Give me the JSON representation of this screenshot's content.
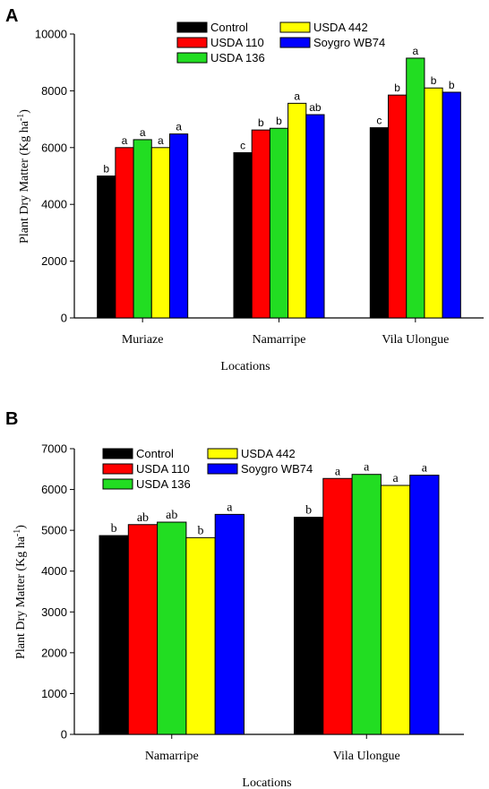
{
  "colors": {
    "Control": "#000000",
    "USDA 110": "#ff0000",
    "USDA 136": "#22dd22",
    "USDA 442": "#ffff00",
    "Soygro WB74": "#0000ff"
  },
  "chart_data": [
    {
      "panel": "A",
      "type": "bar",
      "xlabel": "Locations",
      "ylabel": "Plant Dry Matter (Kg ha-1)",
      "ylim": [
        0,
        10000
      ],
      "yticks": [
        "0",
        "2000",
        "4000",
        "6000",
        "8000",
        "10000"
      ],
      "categories": [
        "Muriaze",
        "Namarripe",
        "Vila Ulongue"
      ],
      "legend": [
        [
          "Control",
          "USDA 442"
        ],
        [
          "USDA 110",
          "Soygro WB74"
        ],
        [
          "USDA 136"
        ]
      ],
      "series": [
        {
          "name": "Control",
          "values": [
            5000,
            5820,
            6700
          ],
          "letters": [
            "b",
            "c",
            "c"
          ]
        },
        {
          "name": "USDA 110",
          "values": [
            6000,
            6620,
            7850
          ],
          "letters": [
            "a",
            "b",
            "b"
          ]
        },
        {
          "name": "USDA 136",
          "values": [
            6280,
            6680,
            9150
          ],
          "letters": [
            "a",
            "b",
            "a"
          ]
        },
        {
          "name": "USDA 442",
          "values": [
            6000,
            7560,
            8100
          ],
          "letters": [
            "a",
            "a",
            "b"
          ]
        },
        {
          "name": "Soygro WB74",
          "values": [
            6480,
            7160,
            7950
          ],
          "letters": [
            "a",
            "ab",
            "b"
          ]
        }
      ]
    },
    {
      "panel": "B",
      "type": "bar",
      "xlabel": "Locations",
      "ylabel": "Plant Dry Matter (Kg ha-1)",
      "ylim": [
        0,
        7000
      ],
      "yticks": [
        "0",
        "1000",
        "2000",
        "3000",
        "4000",
        "5000",
        "6000",
        "7000"
      ],
      "categories": [
        "Namarripe",
        "Vila Ulongue"
      ],
      "legend": [
        [
          "Control",
          "USDA 442"
        ],
        [
          "USDA 110",
          "Soygro WB74"
        ],
        [
          "USDA 136"
        ]
      ],
      "series": [
        {
          "name": "Control",
          "values": [
            4870,
            5320
          ],
          "letters": [
            "b",
            "b"
          ]
        },
        {
          "name": "USDA 110",
          "values": [
            5140,
            6270
          ],
          "letters": [
            "ab",
            "a"
          ]
        },
        {
          "name": "USDA 136",
          "values": [
            5200,
            6370
          ],
          "letters": [
            "ab",
            "a"
          ]
        },
        {
          "name": "USDA 442",
          "values": [
            4820,
            6100
          ],
          "letters": [
            "b",
            "a"
          ]
        },
        {
          "name": "Soygro WB74",
          "values": [
            5390,
            6350
          ],
          "letters": [
            "a",
            "a"
          ]
        }
      ]
    }
  ]
}
